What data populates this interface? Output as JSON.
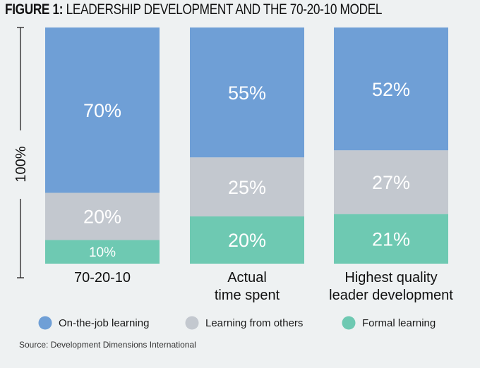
{
  "title_bold": "FIGURE 1:",
  "title_rest": "LEADERSHIP DEVELOPMENT AND THE 70-20-10 MODEL",
  "source": "Source: Development Dimensions International",
  "colors": {
    "on_the_job": "#6f9fd6",
    "from_others": "#c3c8cf",
    "formal": "#6ec9b2",
    "background": "#eef1f2"
  },
  "chart_data": {
    "type": "bar",
    "stacked": true,
    "title": "LEADERSHIP DEVELOPMENT AND THE 70-20-10 MODEL",
    "ylabel": "100%",
    "ylim": [
      0,
      100
    ],
    "grid": false,
    "legend_position": "bottom",
    "categories": [
      [
        "70-20-10"
      ],
      [
        "Actual",
        "time spent"
      ],
      [
        "Highest quality",
        "leader development"
      ]
    ],
    "series": [
      {
        "name": "Formal learning",
        "color_key": "formal",
        "values": [
          10,
          20,
          21
        ],
        "labels": [
          "10%",
          "20%",
          "21%"
        ]
      },
      {
        "name": "Learning from others",
        "color_key": "from_others",
        "values": [
          20,
          25,
          27
        ],
        "labels": [
          "20%",
          "25%",
          "27%"
        ]
      },
      {
        "name": "On-the-job learning",
        "color_key": "on_the_job",
        "values": [
          70,
          55,
          52
        ],
        "labels": [
          "70%",
          "55%",
          "52%"
        ]
      }
    ],
    "legend_order": [
      "On-the-job learning",
      "Learning from others",
      "Formal learning"
    ]
  }
}
